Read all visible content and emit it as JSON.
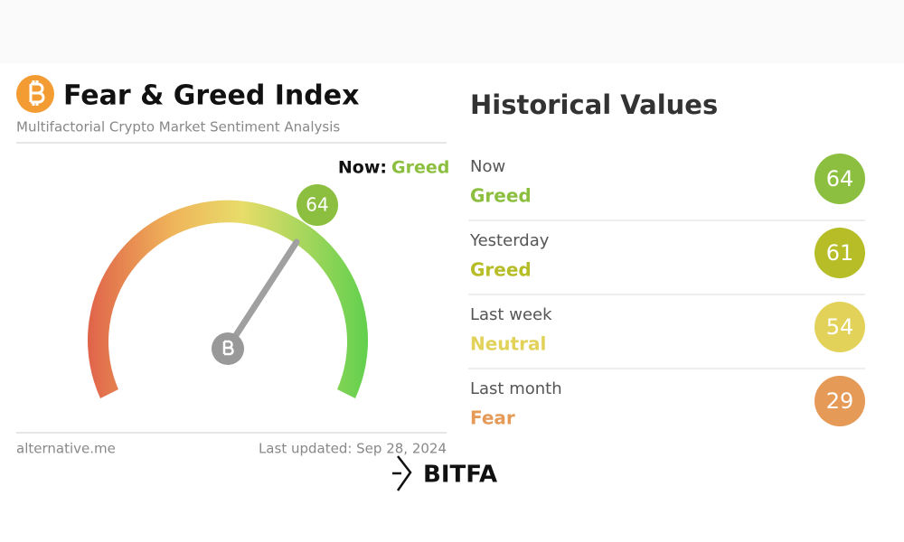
{
  "header": {
    "title": "Fear & Greed Index",
    "subtitle": "Multifactorial Crypto Market Sentiment Analysis"
  },
  "gauge": {
    "now_prefix": "Now:",
    "now_class": "Greed",
    "value": 64,
    "color": "#8cbf3f"
  },
  "footer": {
    "source": "alternative.me",
    "updated": "Last updated: Sep 28, 2024"
  },
  "history": {
    "title": "Historical Values",
    "rows": [
      {
        "period": "Now",
        "label": "Greed",
        "value": 64,
        "color": "#8cbf3f"
      },
      {
        "period": "Yesterday",
        "label": "Greed",
        "value": 61,
        "color": "#b6bd27"
      },
      {
        "period": "Last week",
        "label": "Neutral",
        "value": 54,
        "color": "#e2d25a"
      },
      {
        "period": "Last month",
        "label": "Fear",
        "value": 29,
        "color": "#e59a58"
      }
    ]
  },
  "watermark": "BITFA"
}
